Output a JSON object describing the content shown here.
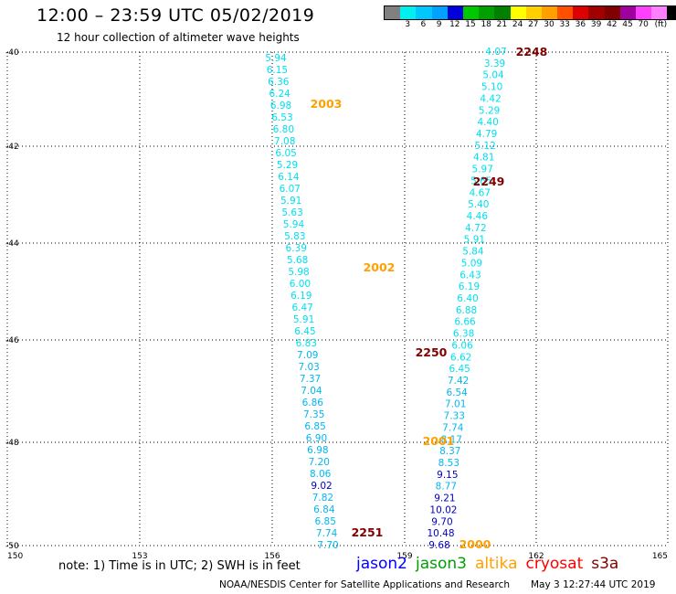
{
  "header": {
    "title": "12:00 – 23:59 UTC 05/02/2019",
    "subtitle": "12 hour collection of altimeter wave heights"
  },
  "legend": {
    "colors": [
      "#808080",
      "#00f0f0",
      "#00c8ff",
      "#00a0ff",
      "#0000dc",
      "#00c800",
      "#00a000",
      "#008000",
      "#ffff00",
      "#ffd000",
      "#ffa000",
      "#ff5000",
      "#dc0000",
      "#a00000",
      "#800000",
      "#a000a0",
      "#ff40ff",
      "#ff80ff",
      "#000000"
    ],
    "labels": [
      "3",
      "6",
      "9",
      "12",
      "15",
      "18",
      "21",
      "24",
      "27",
      "30",
      "33",
      "36",
      "39",
      "42",
      "45",
      "70",
      "(ft)"
    ]
  },
  "axes": {
    "x_ticks": [
      "150",
      "153",
      "156",
      "159",
      "162",
      "165"
    ],
    "y_ticks": [
      "-40",
      "-42",
      "-44",
      "-46",
      "-48",
      "-50"
    ]
  },
  "tracks": {
    "left": [
      {
        "v": "5.94",
        "c": "#00e0f0"
      },
      {
        "v": "6.15",
        "c": "#00e0f0"
      },
      {
        "v": "6.36",
        "c": "#00e0f0"
      },
      {
        "v": "6.24",
        "c": "#00e0f0"
      },
      {
        "v": "6.98",
        "c": "#00e0f0"
      },
      {
        "v": "6.53",
        "c": "#00e0f0"
      },
      {
        "v": "6.80",
        "c": "#00e0f0"
      },
      {
        "v": "7.08",
        "c": "#00e0f0"
      },
      {
        "v": "6.05",
        "c": "#00e0f0"
      },
      {
        "v": "5.29",
        "c": "#00e0f0"
      },
      {
        "v": "6.14",
        "c": "#00e0f0"
      },
      {
        "v": "6.07",
        "c": "#00e0f0"
      },
      {
        "v": "5.91",
        "c": "#00e0f0"
      },
      {
        "v": "5.63",
        "c": "#00e0f0"
      },
      {
        "v": "5.94",
        "c": "#00e0f0"
      },
      {
        "v": "5.83",
        "c": "#00e0f0"
      },
      {
        "v": "6.39",
        "c": "#00e0f0"
      },
      {
        "v": "5.68",
        "c": "#00e0f0"
      },
      {
        "v": "5.98",
        "c": "#00e0f0"
      },
      {
        "v": "6.00",
        "c": "#00e0f0"
      },
      {
        "v": "6.19",
        "c": "#00e0f0"
      },
      {
        "v": "6.47",
        "c": "#00e0f0"
      },
      {
        "v": "5.91",
        "c": "#00e0f0"
      },
      {
        "v": "6.45",
        "c": "#00e0f0"
      },
      {
        "v": "6.83",
        "c": "#00e0f0"
      },
      {
        "v": "7.09",
        "c": "#00b8f0"
      },
      {
        "v": "7.03",
        "c": "#00b8f0"
      },
      {
        "v": "7.37",
        "c": "#00b8f0"
      },
      {
        "v": "7.04",
        "c": "#00b8f0"
      },
      {
        "v": "6.86",
        "c": "#00b8f0"
      },
      {
        "v": "7.35",
        "c": "#00b8f0"
      },
      {
        "v": "6.85",
        "c": "#00b8f0"
      },
      {
        "v": "6.90",
        "c": "#00b8f0"
      },
      {
        "v": "6.98",
        "c": "#00b8f0"
      },
      {
        "v": "7.20",
        "c": "#00b8f0"
      },
      {
        "v": "8.06",
        "c": "#00b8f0"
      },
      {
        "v": "9.02",
        "c": "#0000c8"
      },
      {
        "v": "7.82",
        "c": "#00b8f0"
      },
      {
        "v": "6.84",
        "c": "#00b8f0"
      },
      {
        "v": "6.85",
        "c": "#00b8f0"
      },
      {
        "v": "7.74",
        "c": "#00b8f0"
      },
      {
        "v": "7.70",
        "c": "#00b8f0"
      }
    ],
    "right": [
      {
        "v": "4.07",
        "c": "#00e0f0"
      },
      {
        "v": "3.39",
        "c": "#00e0f0"
      },
      {
        "v": "5.04",
        "c": "#00e0f0"
      },
      {
        "v": "5.10",
        "c": "#00e0f0"
      },
      {
        "v": "4.42",
        "c": "#00e0f0"
      },
      {
        "v": "5.29",
        "c": "#00e0f0"
      },
      {
        "v": "4.40",
        "c": "#00e0f0"
      },
      {
        "v": "4.79",
        "c": "#00e0f0"
      },
      {
        "v": "5.12",
        "c": "#00e0f0"
      },
      {
        "v": "4.81",
        "c": "#00e0f0"
      },
      {
        "v": "5.97",
        "c": "#00e0f0"
      },
      {
        "v": "5.65",
        "c": "#00e0f0"
      },
      {
        "v": "4.67",
        "c": "#00e0f0"
      },
      {
        "v": "5.40",
        "c": "#00e0f0"
      },
      {
        "v": "4.46",
        "c": "#00e0f0"
      },
      {
        "v": "4.72",
        "c": "#00e0f0"
      },
      {
        "v": "5.91",
        "c": "#00e0f0"
      },
      {
        "v": "5.84",
        "c": "#00e0f0"
      },
      {
        "v": "5.09",
        "c": "#00e0f0"
      },
      {
        "v": "6.43",
        "c": "#00e0f0"
      },
      {
        "v": "6.19",
        "c": "#00e0f0"
      },
      {
        "v": "6.40",
        "c": "#00e0f0"
      },
      {
        "v": "6.88",
        "c": "#00e0f0"
      },
      {
        "v": "6.66",
        "c": "#00e0f0"
      },
      {
        "v": "6.38",
        "c": "#00e0f0"
      },
      {
        "v": "6.06",
        "c": "#00e0f0"
      },
      {
        "v": "6.62",
        "c": "#00e0f0"
      },
      {
        "v": "6.45",
        "c": "#00e0f0"
      },
      {
        "v": "7.42",
        "c": "#00b8f0"
      },
      {
        "v": "6.54",
        "c": "#00b8f0"
      },
      {
        "v": "7.01",
        "c": "#00b8f0"
      },
      {
        "v": "7.33",
        "c": "#00b8f0"
      },
      {
        "v": "7.74",
        "c": "#00b8f0"
      },
      {
        "v": "8.17",
        "c": "#00b8f0"
      },
      {
        "v": "8.37",
        "c": "#00b8f0"
      },
      {
        "v": "8.53",
        "c": "#00b8f0"
      },
      {
        "v": "9.15",
        "c": "#0000c8"
      },
      {
        "v": "8.77",
        "c": "#00b8f0"
      },
      {
        "v": "9.21",
        "c": "#0000c8"
      },
      {
        "v": "10.02",
        "c": "#0000c8"
      },
      {
        "v": "9.70",
        "c": "#0000c8"
      },
      {
        "v": "10.48",
        "c": "#0000c8"
      },
      {
        "v": "9.68",
        "c": "#0000c8"
      }
    ]
  },
  "time_labels": [
    {
      "text": "2248",
      "color": "#800000"
    },
    {
      "text": "2003",
      "color": "#ffa000"
    },
    {
      "text": "2249",
      "color": "#800000"
    },
    {
      "text": "2002",
      "color": "#ffa000"
    },
    {
      "text": "2250",
      "color": "#800000"
    },
    {
      "text": "2001",
      "color": "#ffa000"
    },
    {
      "text": "2251",
      "color": "#800000"
    },
    {
      "text": "2000",
      "color": "#ffa000"
    }
  ],
  "footer": {
    "note": "note: 1) Time is in UTC; 2) SWH is in feet",
    "satellites": [
      {
        "name": "jason2",
        "color": "#0000ff"
      },
      {
        "name": "jason3",
        "color": "#00a000"
      },
      {
        "name": "altika",
        "color": "#ffa000"
      },
      {
        "name": "cryosat",
        "color": "#ff0000"
      },
      {
        "name": "s3a",
        "color": "#800000"
      }
    ],
    "credit": "NOAA/NESDIS Center for Satellite Applications and Research",
    "timestamp": "May  3 12:27:44 UTC 2019"
  }
}
